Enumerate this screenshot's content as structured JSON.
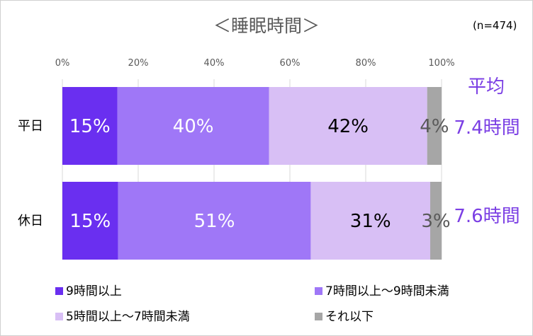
{
  "chart_data": {
    "type": "bar",
    "orientation": "horizontal",
    "stacked": true,
    "normalized_percent": true,
    "title": "＜睡眠時間＞",
    "sample_note": "(n=474)",
    "categories": [
      "平日",
      "休日"
    ],
    "x_ticks": [
      "0%",
      "20%",
      "40%",
      "60%",
      "80%",
      "100%"
    ],
    "xlim": [
      0,
      100
    ],
    "grid": true,
    "legend_position": "bottom",
    "series": [
      {
        "name": "9時間以上",
        "values": [
          14.5,
          14.7
        ],
        "labels": [
          "15%",
          "15%"
        ],
        "color": "#6a2ff0",
        "label_color": "#ffffff"
      },
      {
        "name": "7時間以上～9時間未満",
        "values": [
          40.0,
          50.8
        ],
        "labels": [
          "40%",
          "51%"
        ],
        "color": "#9f77f7",
        "label_color": "#ffffff"
      },
      {
        "name": "5時間以上～7時間未満",
        "values": [
          41.7,
          31.5
        ],
        "labels": [
          "42%",
          "31%"
        ],
        "color": "#d8bff5",
        "label_color": "#000000"
      },
      {
        "name": "それ以下",
        "values": [
          3.8,
          3.0
        ],
        "labels": [
          "4%",
          "3%"
        ],
        "color": "#a6a6a6",
        "label_color": "#595959"
      }
    ],
    "annotations": {
      "average_heading": "平均",
      "averages": [
        "7.4時間",
        "7.6時間"
      ],
      "color": "#7b3fe4"
    }
  }
}
